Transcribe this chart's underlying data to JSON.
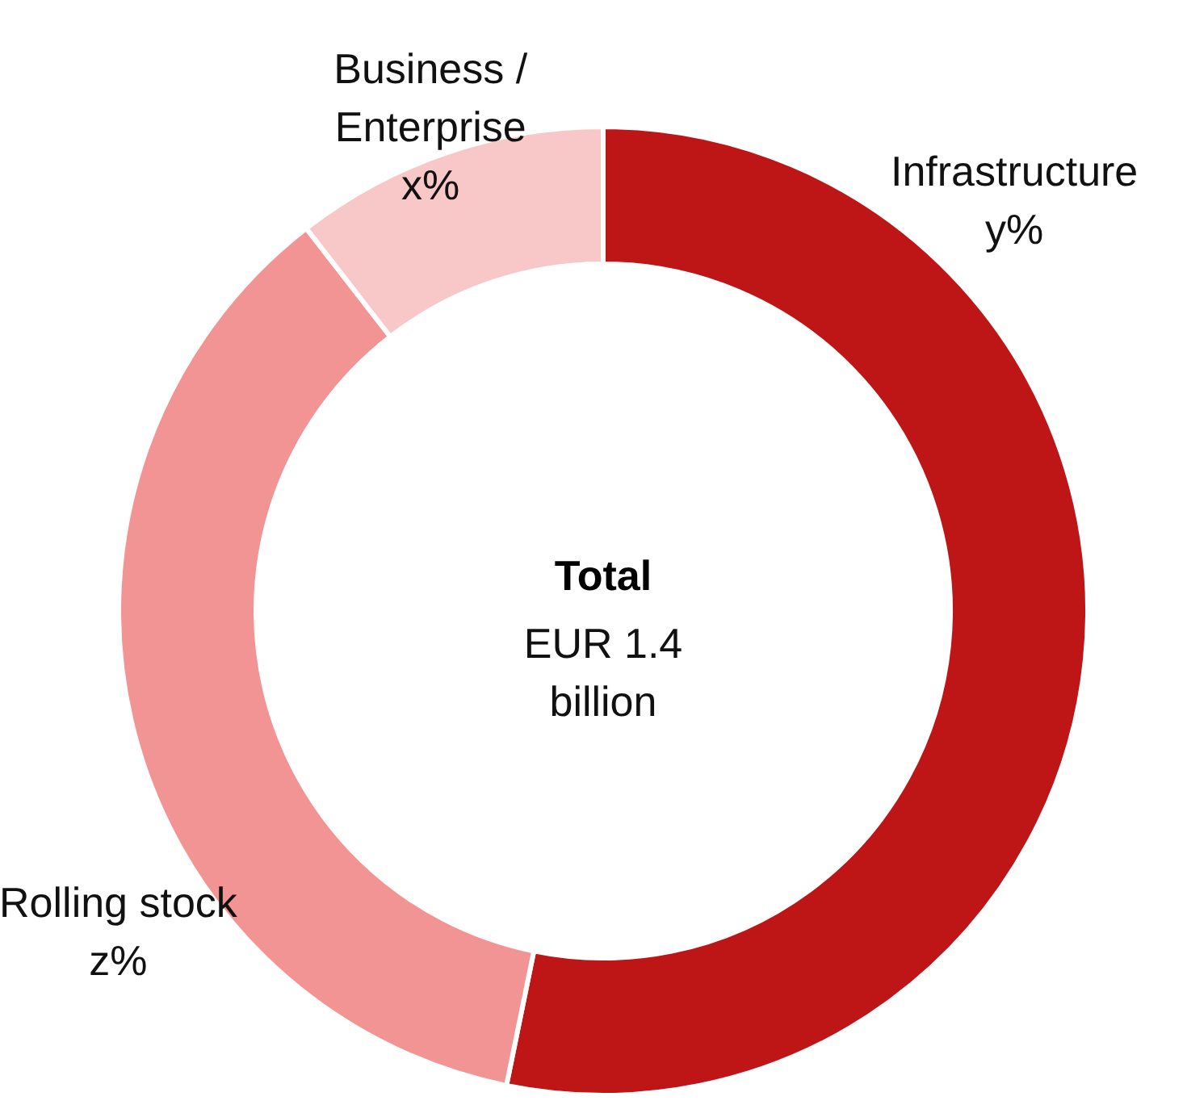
{
  "chart_data": {
    "type": "donut",
    "title": "Total",
    "subtitle": "EUR 1.4\nbillion",
    "categories": [
      "Infrastructure",
      "Rolling stock",
      "Business /\nEnterprise"
    ],
    "values": [
      53.2,
      36.3,
      10.5
    ],
    "colors": [
      "#be1516",
      "#f29494",
      "#f8c8c8"
    ],
    "value_labels": [
      "y%",
      "z%",
      "x%"
    ]
  }
}
